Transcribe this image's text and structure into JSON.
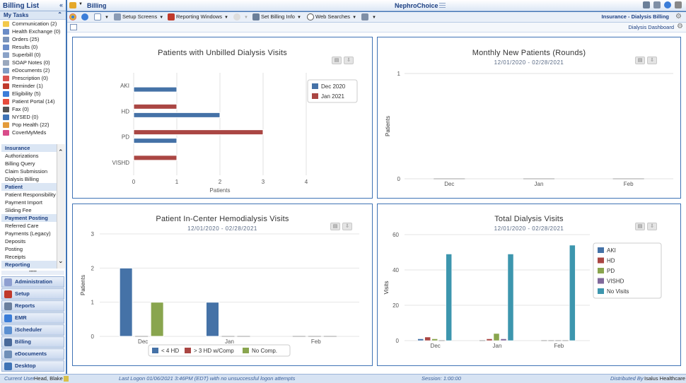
{
  "sidebar": {
    "title": "Billing List",
    "tasks_header": "My Tasks",
    "tasks": [
      {
        "label": "Communication (2)",
        "icon": "envelope-icon",
        "color": "#f2c94c"
      },
      {
        "label": "Health Exchange (0)",
        "icon": "exchange-icon",
        "color": "#6a8cc7"
      },
      {
        "label": "Orders (25)",
        "icon": "orders-icon",
        "color": "#7a93ba"
      },
      {
        "label": "Results (0)",
        "icon": "results-icon",
        "color": "#6a8cc7"
      },
      {
        "label": "Superbill (0)",
        "icon": "superbill-icon",
        "color": "#8aa2c7"
      },
      {
        "label": "SOAP Notes (0)",
        "icon": "notes-icon",
        "color": "#9aa8bd"
      },
      {
        "label": "eDocuments (2)",
        "icon": "document-icon",
        "color": "#7f9cc4"
      },
      {
        "label": "Prescription (0)",
        "icon": "pill-icon",
        "color": "#d9534f"
      },
      {
        "label": "Reminder (1)",
        "icon": "reminder-icon",
        "color": "#c0392b"
      },
      {
        "label": "Eligibility (5)",
        "icon": "umbrella-icon",
        "color": "#3b7dd8"
      },
      {
        "label": "Patient Portal (14)",
        "icon": "heart-icon",
        "color": "#e74c3c"
      },
      {
        "label": "Fax (0)",
        "icon": "fax-icon",
        "color": "#555555"
      },
      {
        "label": "NYSED (0)",
        "icon": "nysed-icon",
        "color": "#3f73b5"
      },
      {
        "label": "Pop Health (22)",
        "icon": "pophealth-icon",
        "color": "#e39b3b"
      },
      {
        "label": "CoverMyMeds",
        "icon": "covermymeds-icon",
        "color": "#d94c8a"
      }
    ],
    "menu": [
      {
        "label": "Insurance",
        "header": true
      },
      {
        "label": "Authorizations"
      },
      {
        "label": "Billing Query"
      },
      {
        "label": "Claim Submission"
      },
      {
        "label": "Dialysis Billing"
      },
      {
        "label": "Patient",
        "header": true
      },
      {
        "label": "Patient Responsibility"
      },
      {
        "label": "Payment Import"
      },
      {
        "label": "Sliding Fee"
      },
      {
        "label": "Payment Posting",
        "header": true
      },
      {
        "label": "Referred Care"
      },
      {
        "label": "Payments (Legacy)"
      },
      {
        "label": "Deposits"
      },
      {
        "label": "Posting"
      },
      {
        "label": "Receipts"
      },
      {
        "label": "Reporting",
        "header": true
      }
    ],
    "modules": [
      {
        "label": "Administration",
        "icon": "administration-icon",
        "color": "#8e9fd0"
      },
      {
        "label": "Setup",
        "icon": "setup-icon",
        "color": "#c0392b"
      },
      {
        "label": "Reports",
        "icon": "reports-icon",
        "color": "#6a7f9e"
      },
      {
        "label": "EMR",
        "icon": "emr-icon",
        "color": "#3b7dd8"
      },
      {
        "label": "iScheduler",
        "icon": "scheduler-icon",
        "color": "#5b8fd0"
      },
      {
        "label": "Billing",
        "icon": "billing-icon",
        "color": "#4a6a9a"
      },
      {
        "label": "eDocuments",
        "icon": "edocuments-icon",
        "color": "#6f8fb8"
      },
      {
        "label": "Desktop",
        "icon": "desktop-icon",
        "color": "#3f73b5"
      }
    ]
  },
  "header": {
    "module_title": "Billing",
    "app_title": "NephroChoice"
  },
  "toolbar": {
    "setup_screens": "Setup Screens",
    "reporting_windows": "Reporting Windows",
    "set_billing_info": "Set Billing Info",
    "web_searches": "Web Searches",
    "context": "Insurance - Dialysis Billing",
    "dashboard": "Dialysis Dashboard"
  },
  "charts": {
    "unbilled": {
      "title": "Patients with Unbilled Dialysis Visits"
    },
    "monthly": {
      "title": "Monthly New Patients (Rounds)",
      "subtitle": "12/01/2020 - 02/28/2021"
    },
    "incenter": {
      "title": "Patient In-Center Hemodialysis Visits",
      "subtitle": "12/01/2020 - 02/28/2021"
    },
    "total": {
      "title": "Total Dialysis Visits",
      "subtitle": "12/01/2020 - 02/28/2021"
    }
  },
  "chart_data": [
    {
      "type": "bar",
      "orientation": "horizontal",
      "title": "Patients with Unbilled Dialysis Visits",
      "categories": [
        "AKI",
        "HD",
        "PD",
        "VISHD"
      ],
      "series": [
        {
          "name": "Dec 2020",
          "color": "#4572a7",
          "values": [
            1,
            2,
            1,
            0
          ]
        },
        {
          "name": "Jan 2021",
          "color": "#aa4643",
          "values": [
            0,
            1,
            3,
            1
          ]
        }
      ],
      "xlabel": "Patients",
      "xticks": [
        0,
        1,
        2,
        3,
        4
      ],
      "xlim": [
        0,
        4
      ],
      "grid": true,
      "legend": "top-right"
    },
    {
      "type": "bar",
      "title": "Monthly New Patients (Rounds)",
      "subtitle": "12/01/2020 - 02/28/2021",
      "categories": [
        "Dec",
        "Jan",
        "Feb"
      ],
      "values": [
        0,
        0,
        0
      ],
      "ylabel": "Patients",
      "yticks": [
        0,
        1
      ],
      "ylim": [
        0,
        1
      ],
      "grid": true
    },
    {
      "type": "bar",
      "title": "Patient In-Center Hemodialysis Visits",
      "subtitle": "12/01/2020 - 02/28/2021",
      "categories": [
        "Dec",
        "Jan",
        "Feb"
      ],
      "series": [
        {
          "name": "< 4 HD",
          "color": "#4572a7",
          "values": [
            2,
            1,
            0
          ]
        },
        {
          "name": "> 3 HD w/Comp",
          "color": "#aa4643",
          "values": [
            0,
            0,
            0
          ]
        },
        {
          "name": "No Comp.",
          "color": "#89a54e",
          "values": [
            1,
            0,
            0
          ]
        }
      ],
      "ylabel": "Patients",
      "yticks": [
        0,
        1,
        2,
        3
      ],
      "ylim": [
        0,
        3
      ],
      "grid": true,
      "legend": "bottom"
    },
    {
      "type": "bar",
      "title": "Total Dialysis Visits",
      "subtitle": "12/01/2020 - 02/28/2021",
      "categories": [
        "Dec",
        "Jan",
        "Feb"
      ],
      "series": [
        {
          "name": "AKI",
          "color": "#4572a7",
          "values": [
            1,
            0,
            0
          ]
        },
        {
          "name": "HD",
          "color": "#aa4643",
          "values": [
            2,
            1,
            0
          ]
        },
        {
          "name": "PD",
          "color": "#89a54e",
          "values": [
            1,
            4,
            0
          ]
        },
        {
          "name": "VISHD",
          "color": "#80699b",
          "values": [
            0,
            1,
            0
          ]
        },
        {
          "name": "No Visits",
          "color": "#3d96ae",
          "values": [
            49,
            49,
            54
          ]
        }
      ],
      "ylabel": "Visits",
      "yticks": [
        0,
        20,
        40,
        60
      ],
      "ylim": [
        0,
        60
      ],
      "grid": true,
      "legend": "right"
    }
  ],
  "status": {
    "user_label": "Current User",
    "user": "Head, Blake",
    "logon": "Last Logon  01/06/2021 3:46PM (EDT)  with no unsuccessful logon attempts",
    "session": "Session: 1:00:00",
    "distributed_label": "Distributed By",
    "distributor": "Isalus Healthcare"
  }
}
